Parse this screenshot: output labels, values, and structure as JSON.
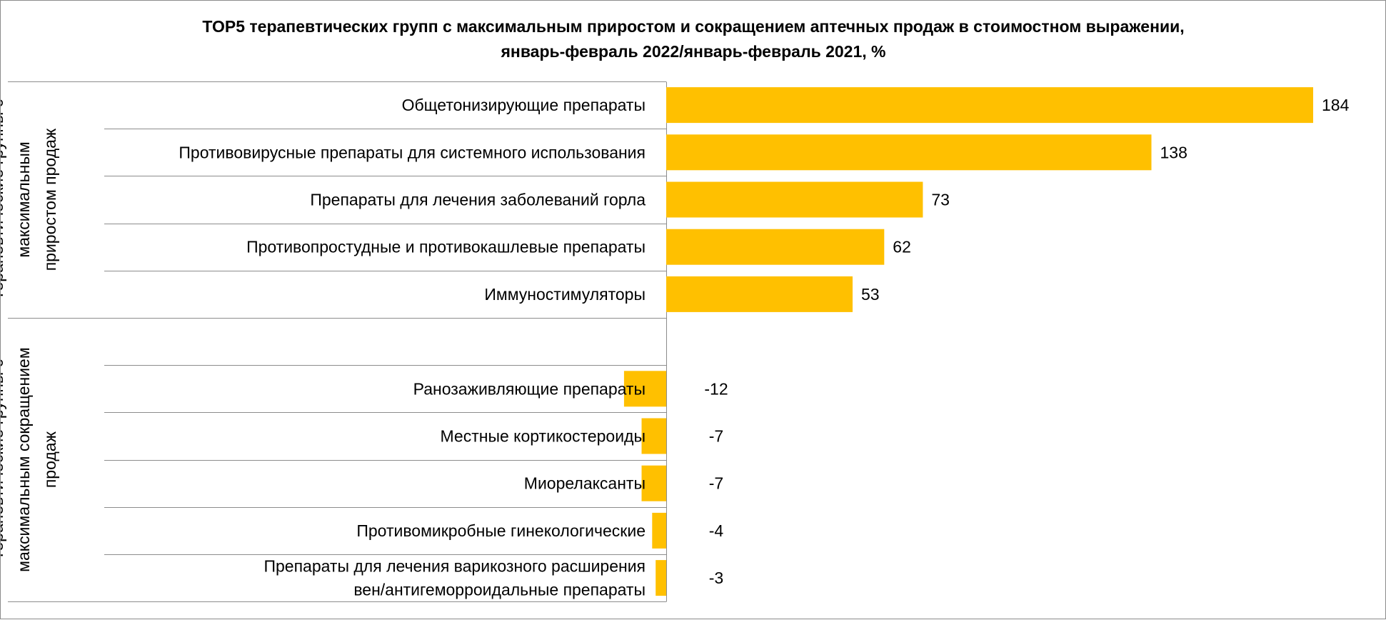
{
  "chart_data": {
    "type": "bar",
    "orientation": "horizontal",
    "title_lines": [
      "TOP5 терапевтических групп с максимальным приростом и сокращением аптечных продаж в стоимостном выражении,",
      "январь-февраль 2022/январь-февраль 2021, %"
    ],
    "bar_color": "#FFC000",
    "groups": [
      {
        "label_lines": [
          "Терапевтические группы с",
          "максимальным",
          "приростом продаж"
        ],
        "categories": [
          {
            "label_lines": [
              "Общетонизирующие препараты"
            ],
            "value": 184
          },
          {
            "label_lines": [
              "Противовирусные препараты для системного использования"
            ],
            "value": 138
          },
          {
            "label_lines": [
              "Препараты для лечения заболеваний горла"
            ],
            "value": 73
          },
          {
            "label_lines": [
              "Противопростудные  и противокашлевые  препараты"
            ],
            "value": 62
          },
          {
            "label_lines": [
              "Иммуностимуляторы"
            ],
            "value": 53
          }
        ]
      },
      {
        "label_lines": [
          "Терапевтические группы с",
          "максимальным сокращением",
          "продаж"
        ],
        "categories": [
          {
            "label_lines": [
              ""
            ],
            "value": null
          },
          {
            "label_lines": [
              "Ранозаживляющие препараты"
            ],
            "value": -12
          },
          {
            "label_lines": [
              "Местные кортикостероиды"
            ],
            "value": -7
          },
          {
            "label_lines": [
              "Миорелаксанты"
            ],
            "value": -7
          },
          {
            "label_lines": [
              "Противомикробные гинекологические"
            ],
            "value": -4
          },
          {
            "label_lines": [
              "Препараты для лечения варикозного расширения",
              "вен/антигеморроидальные препараты"
            ],
            "value": -3
          }
        ]
      }
    ],
    "value_labels": [
      "184",
      "138",
      "73",
      "62",
      "53",
      "",
      "-12",
      "-7",
      "-7",
      "-4",
      "-3"
    ],
    "xlim": [
      -12,
      184
    ],
    "grid": false,
    "legend": "none"
  }
}
